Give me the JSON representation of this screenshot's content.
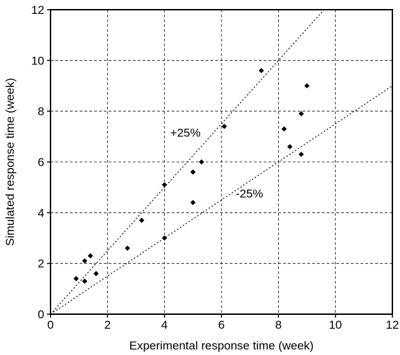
{
  "chart_data": {
    "type": "scatter",
    "xlabel": "Experimental response time (week)",
    "ylabel": "Simulated response time (week)",
    "xlim": [
      0,
      12
    ],
    "ylim": [
      0,
      12
    ],
    "xticks": [
      0,
      2,
      4,
      6,
      8,
      10,
      12
    ],
    "yticks": [
      0,
      2,
      4,
      6,
      8,
      10,
      12
    ],
    "xtick_labels": [
      "0",
      "2",
      "4",
      "6",
      "8",
      "10",
      "12"
    ],
    "ytick_labels": [
      "0",
      "2",
      "4",
      "6",
      "8",
      "10",
      "12"
    ],
    "grid": true,
    "points": [
      {
        "x": 0.9,
        "y": 1.4
      },
      {
        "x": 1.2,
        "y": 2.1
      },
      {
        "x": 1.2,
        "y": 1.3
      },
      {
        "x": 1.4,
        "y": 2.3
      },
      {
        "x": 1.6,
        "y": 1.6
      },
      {
        "x": 2.7,
        "y": 2.6
      },
      {
        "x": 3.2,
        "y": 3.7
      },
      {
        "x": 4.0,
        "y": 5.1
      },
      {
        "x": 4.0,
        "y": 3.0
      },
      {
        "x": 5.0,
        "y": 5.6
      },
      {
        "x": 5.0,
        "y": 4.4
      },
      {
        "x": 5.3,
        "y": 6.0
      },
      {
        "x": 6.1,
        "y": 7.4
      },
      {
        "x": 7.4,
        "y": 9.6
      },
      {
        "x": 8.2,
        "y": 7.3
      },
      {
        "x": 8.4,
        "y": 6.6
      },
      {
        "x": 8.8,
        "y": 7.9
      },
      {
        "x": 8.8,
        "y": 6.3
      },
      {
        "x": 9.0,
        "y": 9.0
      }
    ],
    "reference_lines": [
      {
        "label": "+25%",
        "slope": 1.25
      },
      {
        "label": "-25%",
        "slope": 0.75
      }
    ]
  }
}
